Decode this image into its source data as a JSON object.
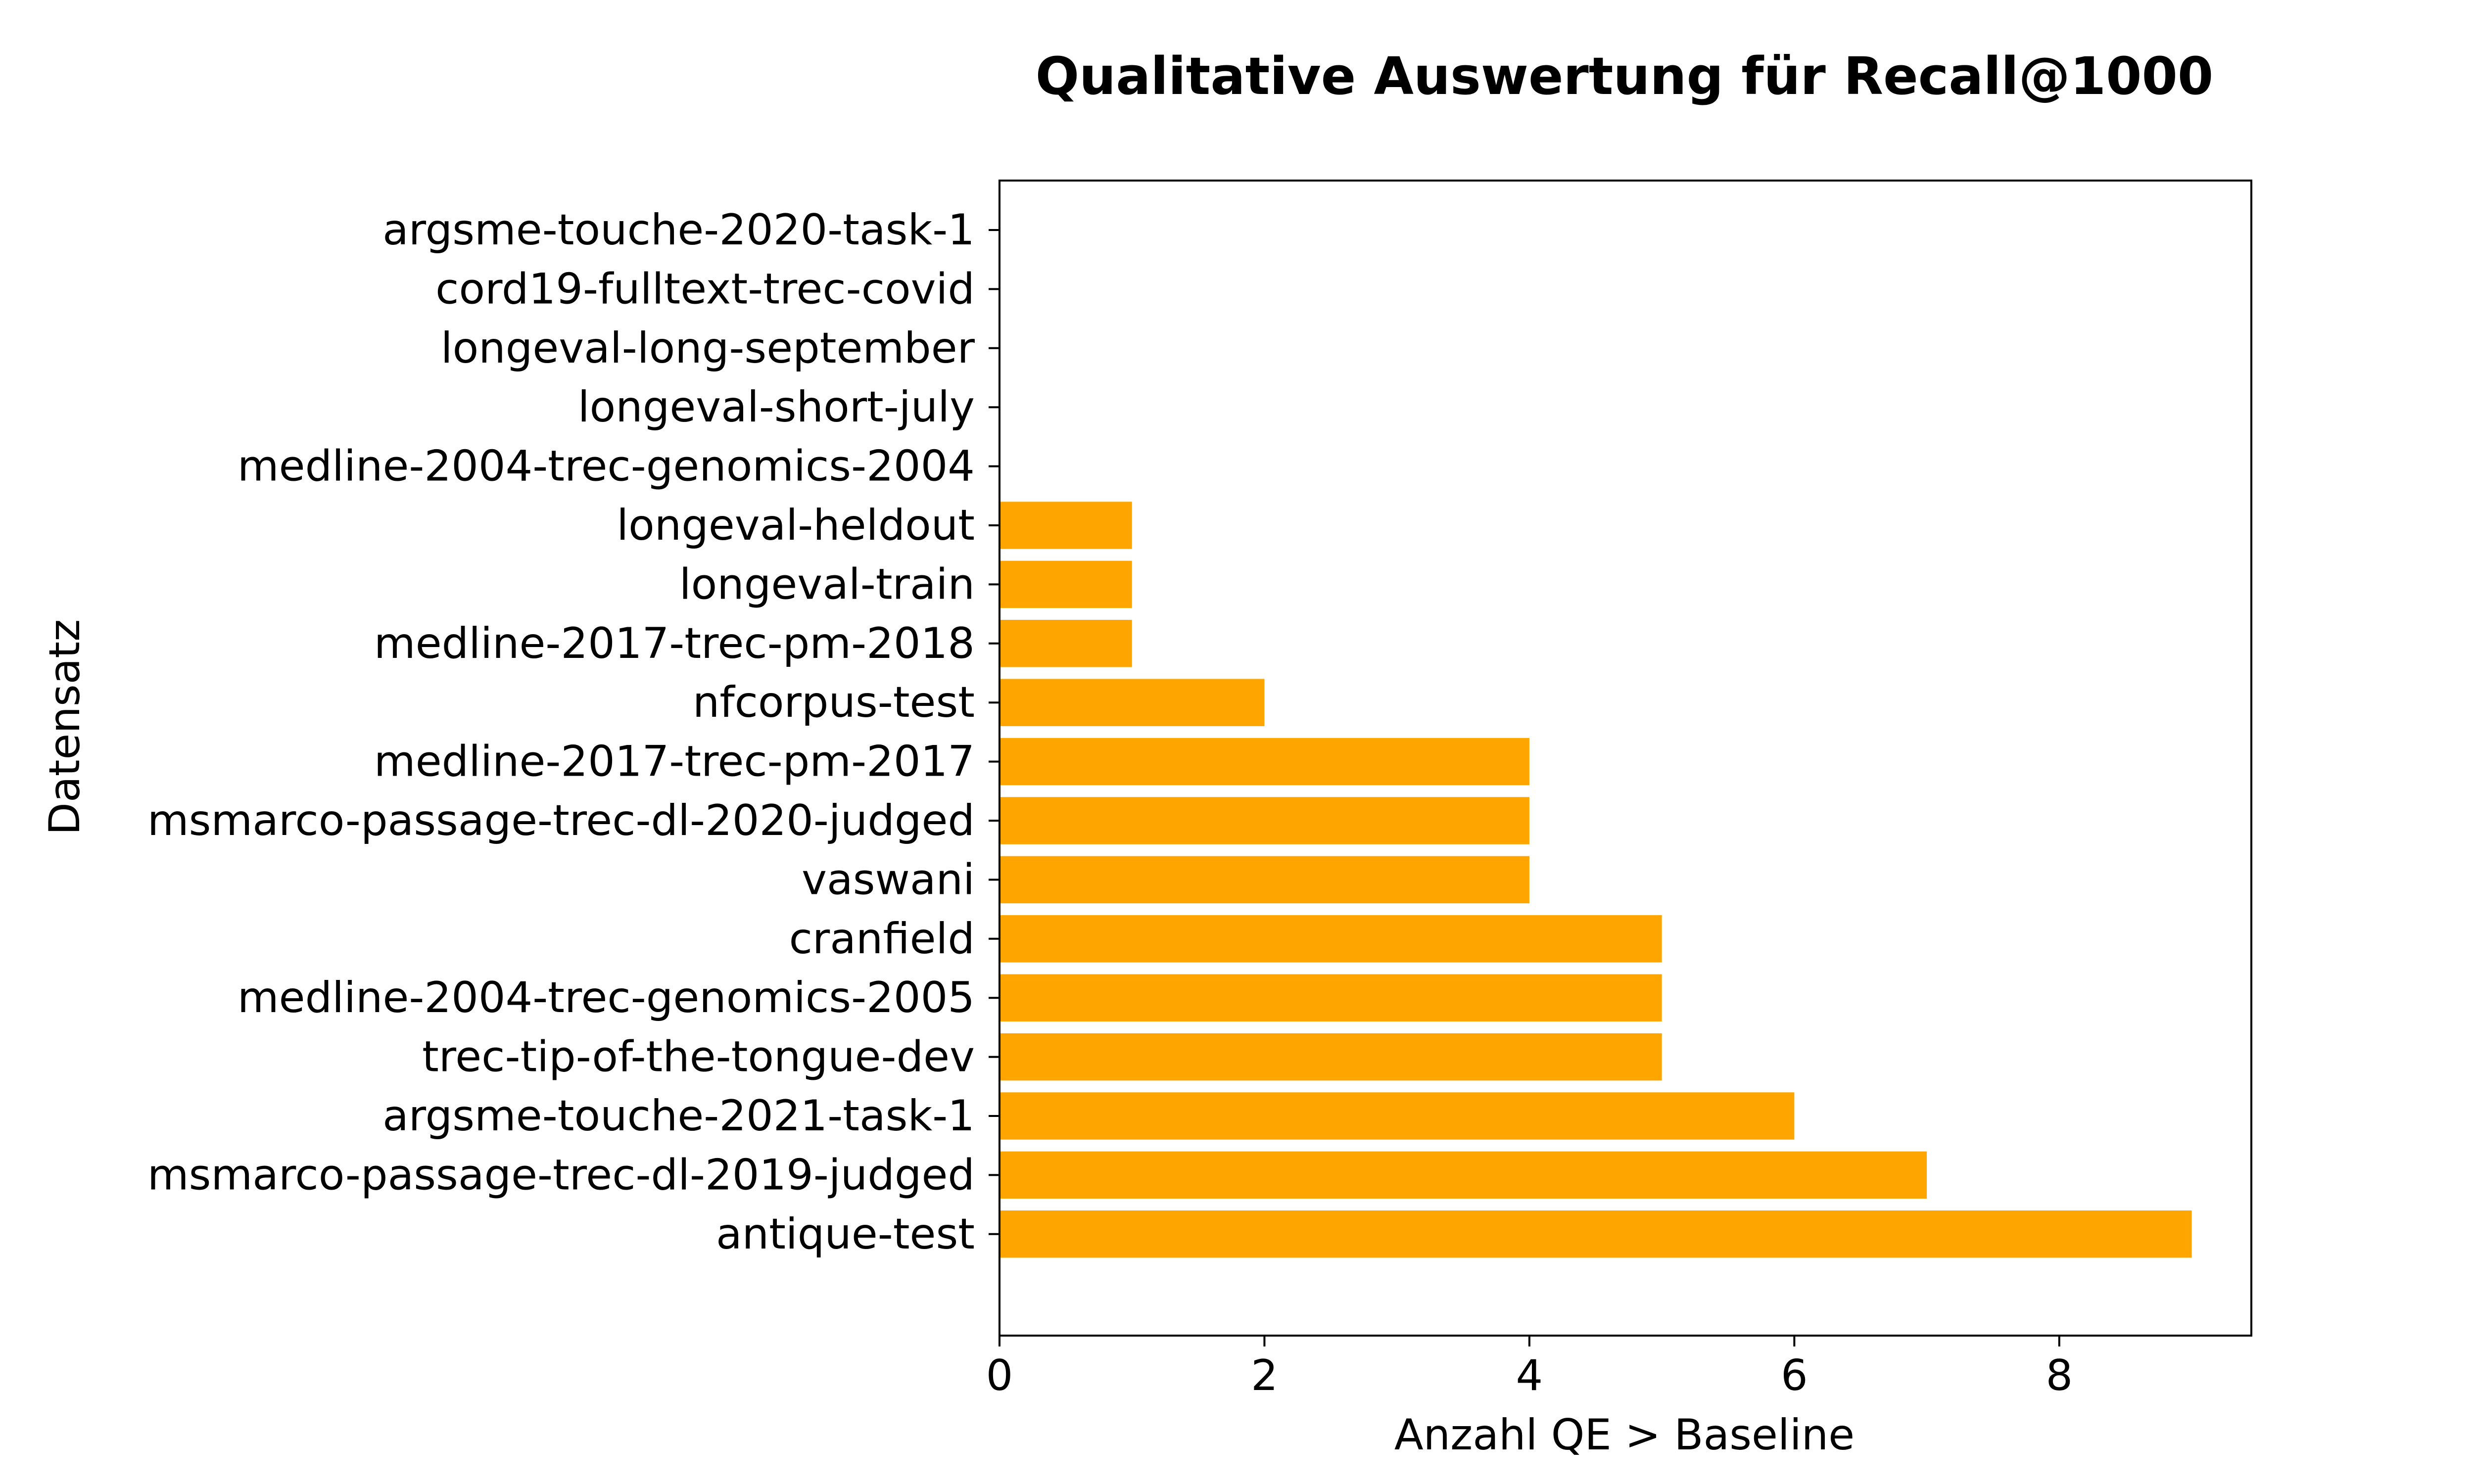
{
  "chart_data": {
    "type": "bar",
    "orientation": "horizontal",
    "title": "Qualitative Auswertung für Recall@1000",
    "xlabel": "Anzahl QE > Baseline",
    "ylabel": "Datensatz",
    "xlim": [
      0,
      9.45
    ],
    "xticks": [
      0,
      2,
      4,
      6,
      8
    ],
    "grid": false,
    "bar_color": "#ffa500",
    "categories": [
      "argsme-touche-2020-task-1",
      "cord19-fulltext-trec-covid",
      "longeval-long-september",
      "longeval-short-july",
      "medline-2004-trec-genomics-2004",
      "longeval-heldout",
      "longeval-train",
      "medline-2017-trec-pm-2018",
      "nfcorpus-test",
      "medline-2017-trec-pm-2017",
      "msmarco-passage-trec-dl-2020-judged",
      "vaswani",
      "cranfield",
      "medline-2004-trec-genomics-2005",
      "trec-tip-of-the-tongue-dev",
      "argsme-touche-2021-task-1",
      "msmarco-passage-trec-dl-2019-judged",
      "antique-test"
    ],
    "values": [
      0,
      0,
      0,
      0,
      0,
      1,
      1,
      1,
      2,
      4,
      4,
      4,
      5,
      5,
      5,
      6,
      7,
      9
    ]
  }
}
